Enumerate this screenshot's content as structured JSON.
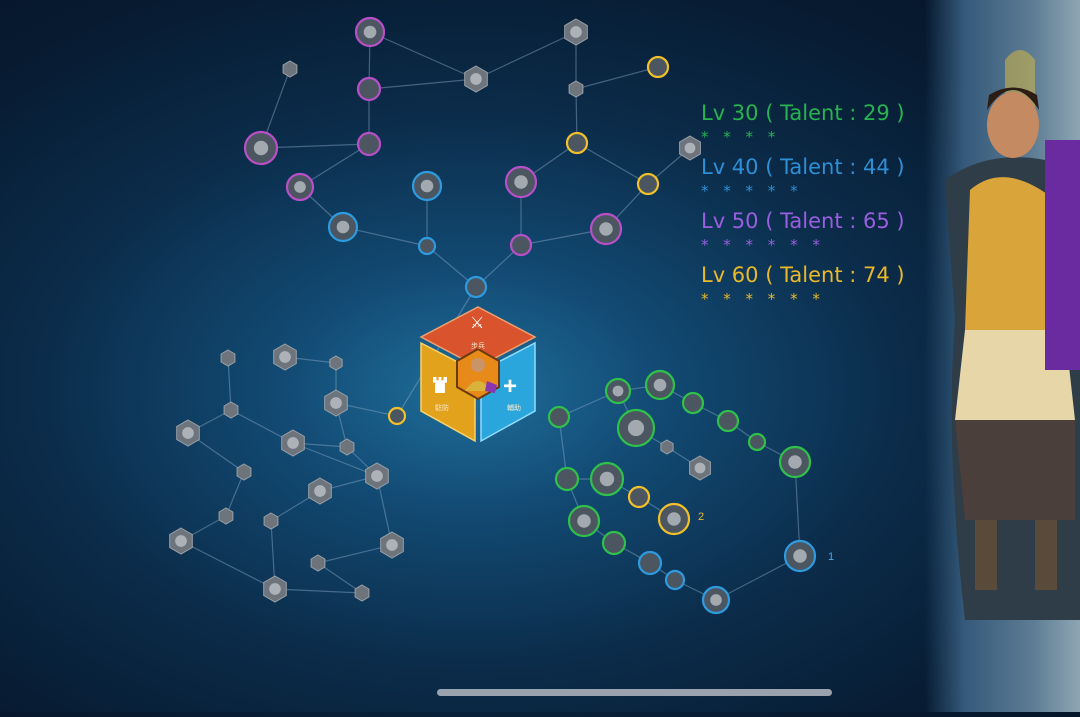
{
  "legend": [
    {
      "label": "Lv 30 ( Talent : 29 )",
      "stars": "* * * *",
      "color": "#27b34f"
    },
    {
      "label": "Lv 40 ( Talent : 44 )",
      "stars": "* * * * *",
      "color": "#2f8fd6"
    },
    {
      "label": "Lv 50 ( Talent : 65 )",
      "stars": "* * * * * *",
      "color": "#9a5ee0"
    },
    {
      "label": "Lv 60 ( Talent : 74 )",
      "stars": "* * * * * *",
      "color": "#e9b92a"
    }
  ],
  "talent_hub": {
    "top_label": "步兵",
    "left_label": "駐防",
    "right_label": "輔助",
    "top_icon": "sword-icon",
    "left_icon": "castle-tower-icon",
    "right_icon": "plus-icon"
  },
  "node_markers": {
    "blue_marker": "1",
    "yellow_marker": "2"
  },
  "ring_colors": {
    "green": "#2fc24a",
    "blue": "#2e9be0",
    "purple": "#b94fc8",
    "yellow": "#f2c12a",
    "gray": "#7f8790"
  }
}
